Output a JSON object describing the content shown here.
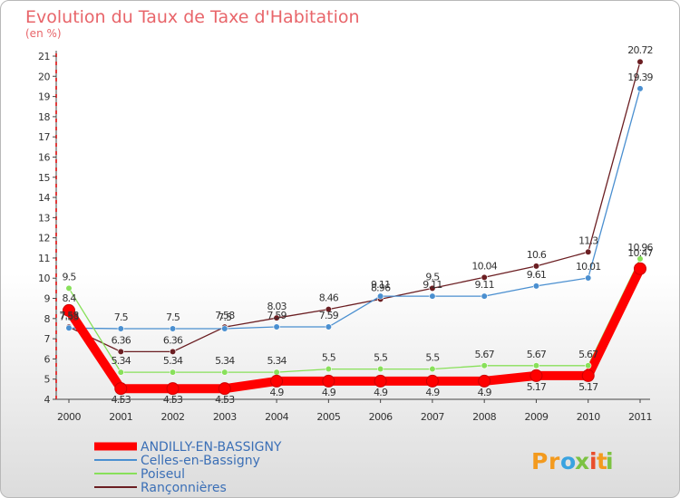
{
  "chart_data": {
    "type": "line",
    "title": "Evolution du Taux de Taxe d'Habitation",
    "subtitle": "(en %)",
    "xlabel": "",
    "ylabel": "",
    "x": [
      "2000",
      "2001",
      "2002",
      "2003",
      "2004",
      "2005",
      "2006",
      "2007",
      "2008",
      "2009",
      "2010",
      "2011"
    ],
    "ylim": [
      4,
      21
    ],
    "yticks": [
      "4",
      "5",
      "6",
      "7",
      "8",
      "9",
      "10",
      "11",
      "12",
      "13",
      "14",
      "15",
      "16",
      "17",
      "18",
      "19",
      "20",
      "21"
    ],
    "grid": false,
    "legend_position": "bottom-left",
    "series": [
      {
        "name": "ANDILLY-EN-BASSIGNY",
        "color": "#ff0000",
        "values": [
          8.4,
          4.53,
          4.53,
          4.53,
          4.9,
          4.9,
          4.9,
          4.9,
          4.9,
          5.17,
          5.17,
          10.47
        ],
        "labels": [
          "8.4",
          "4.53",
          "4.53",
          "4.53",
          "4.9",
          "4.9",
          "4.9",
          "4.9",
          "4.9",
          "5.17",
          "5.17",
          "10.47"
        ]
      },
      {
        "name": "Celles-en-Bassigny",
        "color": "#4a8fd0",
        "values": [
          7.53,
          7.5,
          7.5,
          7.5,
          7.59,
          7.59,
          9.11,
          9.11,
          9.11,
          9.61,
          10.01,
          19.39
        ],
        "labels": [
          "7.53",
          "7.5",
          "7.5",
          "7.5",
          "7.59",
          "7.59",
          "9.11",
          "9.11",
          "9.11",
          "9.61",
          "10.01",
          "19.39"
        ]
      },
      {
        "name": "Poiseul",
        "color": "#88e05a",
        "values": [
          9.5,
          5.34,
          5.34,
          5.34,
          5.34,
          5.5,
          5.5,
          5.5,
          5.67,
          5.67,
          5.67,
          10.96
        ],
        "labels": [
          "9.5",
          "5.34",
          "5.34",
          "5.34",
          "5.34",
          "5.5",
          "5.5",
          "5.5",
          "5.67",
          "5.67",
          "5.67",
          "10.96"
        ]
      },
      {
        "name": "Rançonnières",
        "color": "#6b1e22",
        "values": [
          7.58,
          6.36,
          6.36,
          7.58,
          8.03,
          8.46,
          8.96,
          9.5,
          10.04,
          10.6,
          11.3,
          20.72
        ],
        "labels": [
          "7.58",
          "6.36",
          "6.36",
          "7.58",
          "8.03",
          "8.46",
          "8.96",
          "9.5",
          "10.04",
          "10.6",
          "11.3",
          "20.72"
        ]
      }
    ]
  },
  "brand": {
    "text": "Proxiti",
    "letters": [
      "P",
      "r",
      "o",
      "x",
      "i",
      "t",
      "i"
    ],
    "colors": [
      "#f39a1e",
      "#f39a1e",
      "#3aa3e0",
      "#7cc242",
      "#e94e2c",
      "#f39a1e",
      "#7cc242"
    ]
  }
}
